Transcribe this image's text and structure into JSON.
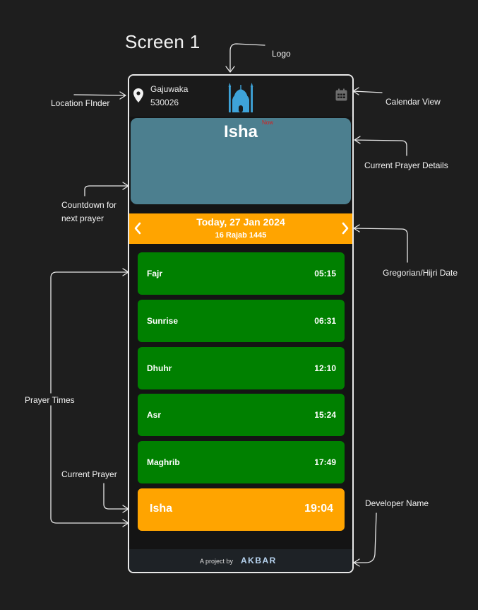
{
  "canvas_title": "Screen 1",
  "annotations": {
    "logo": "Logo",
    "location_finder": "Location FInder",
    "calendar_view": "Calendar View",
    "current_prayer_details": "Current Prayer Details",
    "countdown_line1": "Countdown for",
    "countdown_line2": "next prayer",
    "gregorian_hijri": "Gregorian/Hijri Date",
    "prayer_times": "Prayer Times",
    "current_prayer": "Current Prayer",
    "developer_name": "Developer Name"
  },
  "header": {
    "location_city": "Gajuwaka",
    "location_pin": "530026",
    "location_icon": "map-pin-icon",
    "logo_icon": "mosque-icon",
    "calendar_icon": "calendar-icon"
  },
  "current_prayer_card": {
    "name": "Isha",
    "badge": "Now"
  },
  "date_bar": {
    "gregorian": "Today, 27 Jan 2024",
    "hijri": "16 Rajab 1445",
    "prev_icon": "chevron-left-icon",
    "next_icon": "chevron-right-icon"
  },
  "prayers": [
    {
      "name": "Fajr",
      "time": "05:15"
    },
    {
      "name": "Sunrise",
      "time": "06:31"
    },
    {
      "name": "Dhuhr",
      "time": "12:10"
    },
    {
      "name": "Asr",
      "time": "15:24"
    },
    {
      "name": "Maghrib",
      "time": "17:49"
    },
    {
      "name": "Isha",
      "time": "19:04",
      "current": true
    }
  ],
  "footer": {
    "prefix": "A project by",
    "developer": "AKBAR"
  },
  "colors": {
    "background": "#1e1e1e",
    "card": "#4c7f8f",
    "accent_orange": "#ffa400",
    "prayer_green": "#008000",
    "now_badge": "#d42020"
  }
}
